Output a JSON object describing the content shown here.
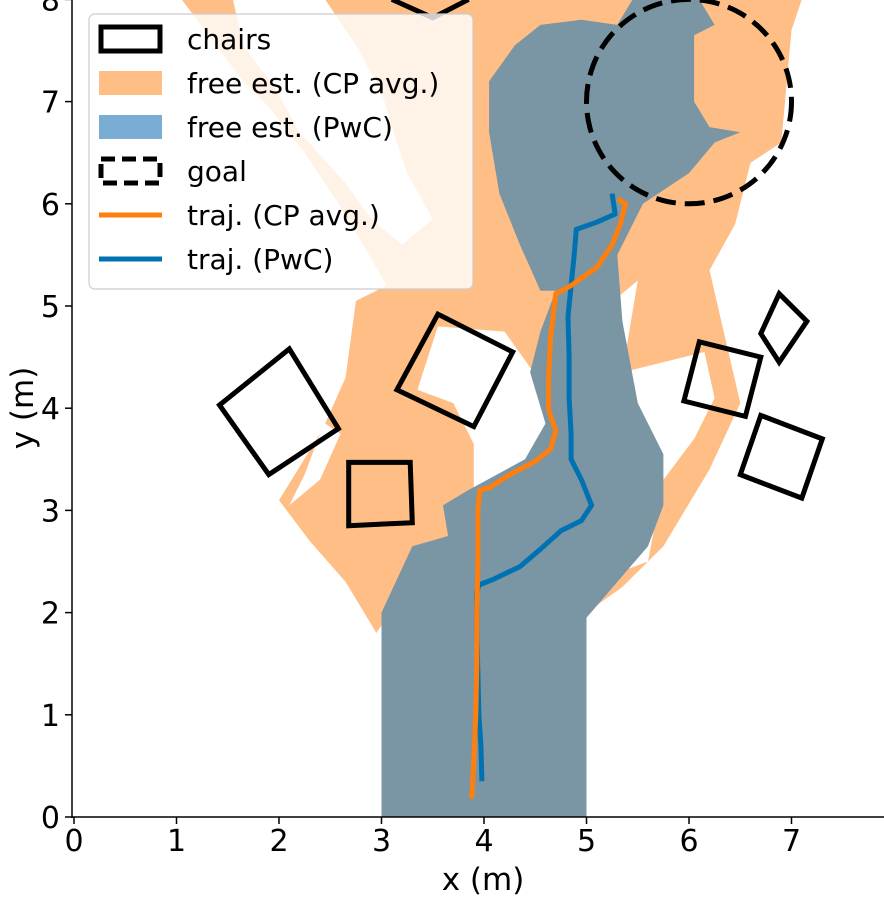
{
  "chart_data": {
    "type": "area",
    "xlabel": "x (m)",
    "ylabel": "y (m)",
    "xlim": [
      0,
      7.9
    ],
    "ylim": [
      0,
      8
    ],
    "xticks": [
      0,
      1,
      2,
      3,
      4,
      5,
      6,
      7
    ],
    "yticks": [
      0,
      1,
      2,
      3,
      4,
      5,
      6,
      7,
      8
    ],
    "legend_position": "top-left",
    "colors": {
      "cp_fill": "#ffbe86",
      "pwc_fill": "#7aadd4",
      "overlap_fill": "#7a95a3",
      "cp_traj": "#ff7f0e",
      "pwc_traj": "#0072b2",
      "outline": "#000000"
    },
    "legend": [
      {
        "label": "chairs",
        "kind": "rect-solid"
      },
      {
        "label": "free est. (CP avg.)",
        "kind": "patch-cp"
      },
      {
        "label": "free est. (PwC)",
        "kind": "patch-pwc"
      },
      {
        "label": "goal",
        "kind": "rect-dashed"
      },
      {
        "label": "traj. (CP avg.)",
        "kind": "line-cp"
      },
      {
        "label": "traj. (PwC)",
        "kind": "line-pwc"
      }
    ],
    "goal": {
      "center": [
        6.0,
        7.0
      ],
      "radius": 1.0
    },
    "chairs": [
      [
        [
          1.42,
          4.03
        ],
        [
          2.1,
          4.58
        ],
        [
          2.58,
          3.8
        ],
        [
          1.9,
          3.35
        ]
      ],
      [
        [
          2.68,
          3.47
        ],
        [
          3.28,
          3.47
        ],
        [
          3.3,
          2.88
        ],
        [
          2.68,
          2.85
        ]
      ],
      [
        [
          3.15,
          4.18
        ],
        [
          3.55,
          4.92
        ],
        [
          4.28,
          4.55
        ],
        [
          3.9,
          3.82
        ]
      ],
      [
        [
          6.1,
          4.65
        ],
        [
          6.7,
          4.5
        ],
        [
          6.55,
          3.92
        ],
        [
          5.95,
          4.07
        ]
      ],
      [
        [
          6.7,
          4.73
        ],
        [
          6.88,
          5.12
        ],
        [
          7.15,
          4.85
        ],
        [
          6.88,
          4.45
        ]
      ],
      [
        [
          6.7,
          3.93
        ],
        [
          7.3,
          3.7
        ],
        [
          7.1,
          3.12
        ],
        [
          6.5,
          3.35
        ]
      ],
      [
        [
          3.1,
          8.0
        ],
        [
          3.5,
          7.82
        ],
        [
          3.85,
          8.0
        ]
      ]
    ],
    "free_cp": [
      [
        [
          2.95,
          1.8
        ],
        [
          3.45,
          2.55
        ],
        [
          3.9,
          2.7
        ],
        [
          3.9,
          3.65
        ],
        [
          3.7,
          4.05
        ],
        [
          3.35,
          4.18
        ],
        [
          3.55,
          4.8
        ],
        [
          4.2,
          4.75
        ],
        [
          4.7,
          4.05
        ],
        [
          4.85,
          4.7
        ],
        [
          5.5,
          5.25
        ],
        [
          5.35,
          4.35
        ],
        [
          6.15,
          4.55
        ],
        [
          6.25,
          4.1
        ],
        [
          6.05,
          3.7
        ],
        [
          5.75,
          3.3
        ],
        [
          5.6,
          2.5
        ],
        [
          5.2,
          2.35
        ],
        [
          5.0,
          2.0
        ],
        [
          5.35,
          2.25
        ],
        [
          5.75,
          2.65
        ],
        [
          6.2,
          3.4
        ],
        [
          6.5,
          4.05
        ],
        [
          6.2,
          5.35
        ],
        [
          6.45,
          5.8
        ],
        [
          6.6,
          6.4
        ],
        [
          6.9,
          6.6
        ],
        [
          7.0,
          7.7
        ],
        [
          7.1,
          8.0
        ],
        [
          2.45,
          8.0
        ],
        [
          2.75,
          7.55
        ],
        [
          3.0,
          7.1
        ],
        [
          3.1,
          6.75
        ],
        [
          3.25,
          6.3
        ],
        [
          3.5,
          5.85
        ],
        [
          3.2,
          5.6
        ],
        [
          2.9,
          5.85
        ],
        [
          2.65,
          6.2
        ],
        [
          2.2,
          6.7
        ],
        [
          1.95,
          7.15
        ],
        [
          1.65,
          7.55
        ],
        [
          1.55,
          8.0
        ],
        [
          1.05,
          8.0
        ],
        [
          1.35,
          7.6
        ],
        [
          1.65,
          7.2
        ],
        [
          1.9,
          6.95
        ],
        [
          2.25,
          6.5
        ],
        [
          2.55,
          6.05
        ],
        [
          2.85,
          5.55
        ],
        [
          3.05,
          5.2
        ],
        [
          2.75,
          5.05
        ],
        [
          2.65,
          4.3
        ],
        [
          2.45,
          3.85
        ],
        [
          2.6,
          3.75
        ],
        [
          2.4,
          3.3
        ],
        [
          2.1,
          3.05
        ],
        [
          2.25,
          3.35
        ],
        [
          2.4,
          3.75
        ],
        [
          2.0,
          3.1
        ],
        [
          2.3,
          2.7
        ],
        [
          2.65,
          2.3
        ],
        [
          2.95,
          1.8
        ]
      ]
    ],
    "free_pwc": [
      [
        [
          3.0,
          0.0
        ],
        [
          5.0,
          0.0
        ],
        [
          5.0,
          1.95
        ],
        [
          5.3,
          2.3
        ],
        [
          5.6,
          2.65
        ],
        [
          5.75,
          3.05
        ],
        [
          5.75,
          3.55
        ],
        [
          5.5,
          4.05
        ],
        [
          5.35,
          4.85
        ],
        [
          5.3,
          5.5
        ],
        [
          5.55,
          6.0
        ],
        [
          6.0,
          6.3
        ],
        [
          6.25,
          6.6
        ],
        [
          6.5,
          6.7
        ],
        [
          6.2,
          6.75
        ],
        [
          6.05,
          7.0
        ],
        [
          6.05,
          7.65
        ],
        [
          6.25,
          7.75
        ],
        [
          6.1,
          8.0
        ],
        [
          5.45,
          8.0
        ],
        [
          5.3,
          7.75
        ],
        [
          4.95,
          7.8
        ],
        [
          4.55,
          7.75
        ],
        [
          4.3,
          7.55
        ],
        [
          4.05,
          7.2
        ],
        [
          4.05,
          6.7
        ],
        [
          4.15,
          6.1
        ],
        [
          4.35,
          5.6
        ],
        [
          4.55,
          5.15
        ],
        [
          4.7,
          5.15
        ],
        [
          4.55,
          4.75
        ],
        [
          4.45,
          4.35
        ],
        [
          4.6,
          3.85
        ],
        [
          4.4,
          3.5
        ],
        [
          3.85,
          3.2
        ],
        [
          3.6,
          3.05
        ],
        [
          3.65,
          2.75
        ],
        [
          3.3,
          2.65
        ],
        [
          3.0,
          2.0
        ],
        [
          3.0,
          0.0
        ]
      ]
    ],
    "traj_cp": [
      [
        3.88,
        0.18
      ],
      [
        3.9,
        0.55
      ],
      [
        3.92,
        1.0
      ],
      [
        3.93,
        1.5
      ],
      [
        3.93,
        2.0
      ],
      [
        3.94,
        2.5
      ],
      [
        3.94,
        3.0
      ],
      [
        3.96,
        3.2
      ],
      [
        4.05,
        3.22
      ],
      [
        4.25,
        3.35
      ],
      [
        4.5,
        3.48
      ],
      [
        4.65,
        3.6
      ],
      [
        4.7,
        3.78
      ],
      [
        4.63,
        3.98
      ],
      [
        4.63,
        4.3
      ],
      [
        4.65,
        4.7
      ],
      [
        4.7,
        5.12
      ],
      [
        4.85,
        5.2
      ],
      [
        5.1,
        5.38
      ],
      [
        5.25,
        5.6
      ],
      [
        5.33,
        5.8
      ],
      [
        5.38,
        6.0
      ],
      [
        5.3,
        6.05
      ]
    ],
    "traj_pwc": [
      [
        3.98,
        0.35
      ],
      [
        3.97,
        0.7
      ],
      [
        3.95,
        1.0
      ],
      [
        3.94,
        1.4
      ],
      [
        3.93,
        1.8
      ],
      [
        3.93,
        2.2
      ],
      [
        3.95,
        2.27
      ],
      [
        4.1,
        2.33
      ],
      [
        4.35,
        2.45
      ],
      [
        4.55,
        2.62
      ],
      [
        4.75,
        2.8
      ],
      [
        4.95,
        2.9
      ],
      [
        5.05,
        3.05
      ],
      [
        4.95,
        3.3
      ],
      [
        4.85,
        3.5
      ],
      [
        4.85,
        3.75
      ],
      [
        4.83,
        4.1
      ],
      [
        4.83,
        4.5
      ],
      [
        4.82,
        4.9
      ],
      [
        4.85,
        5.2
      ],
      [
        4.88,
        5.5
      ],
      [
        4.9,
        5.75
      ],
      [
        5.1,
        5.82
      ],
      [
        5.28,
        5.9
      ],
      [
        5.25,
        6.1
      ]
    ]
  }
}
